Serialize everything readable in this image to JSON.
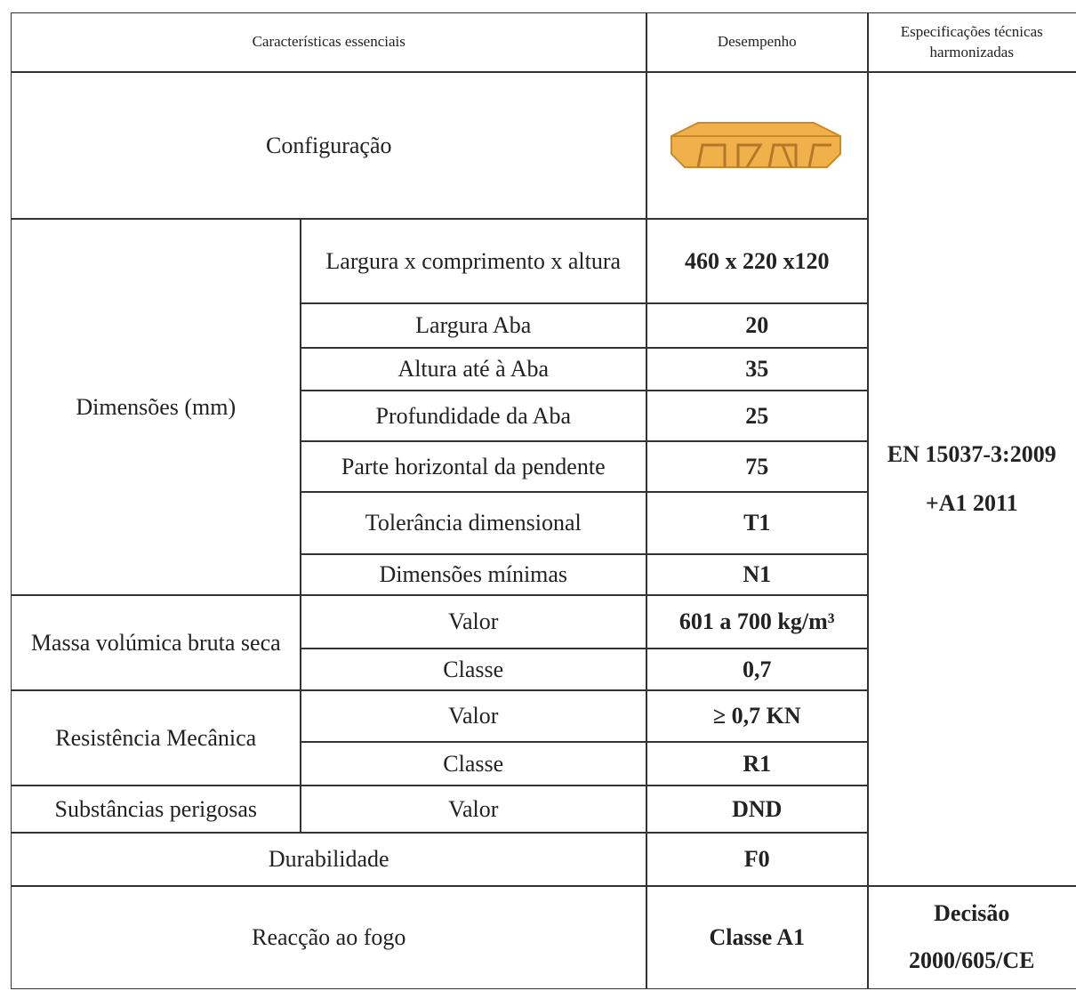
{
  "table": {
    "header": [
      "Características essenciais",
      "Desempenho",
      "Especificações técnicas harmonizadas"
    ],
    "configuration": "Configuração",
    "sections": [
      {
        "label": "Dimensões (mm)",
        "items": [
          [
            "Largura x comprimento x altura",
            "460 x 220 x120"
          ],
          [
            "Largura Aba",
            "20"
          ],
          [
            "Altura até à Aba",
            "35"
          ],
          [
            "Profundidade da Aba",
            "25"
          ],
          [
            "Parte horizontal da pendente",
            "75"
          ],
          [
            "Tolerância dimensional",
            "T1"
          ],
          [
            "Dimensões mínimas",
            "N1"
          ]
        ]
      },
      {
        "label": "Massa volúmica bruta seca",
        "items": [
          [
            "Valor",
            "601 a 700 kg/m³"
          ],
          [
            "Classe",
            "0,7"
          ]
        ]
      },
      {
        "label": "Resistência Mecânica",
        "items": [
          [
            "Valor",
            "≥ 0,7 KN"
          ],
          [
            "Classe",
            "R1"
          ]
        ]
      },
      {
        "label": "Substâncias perigosas",
        "items": [
          [
            "Valor",
            "DND"
          ]
        ]
      }
    ],
    "durability": [
      "Durabilidade",
      "F0"
    ],
    "fire": [
      "Reacção ao fogo",
      "Classe A1"
    ],
    "specification": [
      "EN 15037-3:2009",
      "+A1 2011"
    ],
    "fire_specification": [
      "Decisão",
      "2000/605/CE"
    ]
  }
}
